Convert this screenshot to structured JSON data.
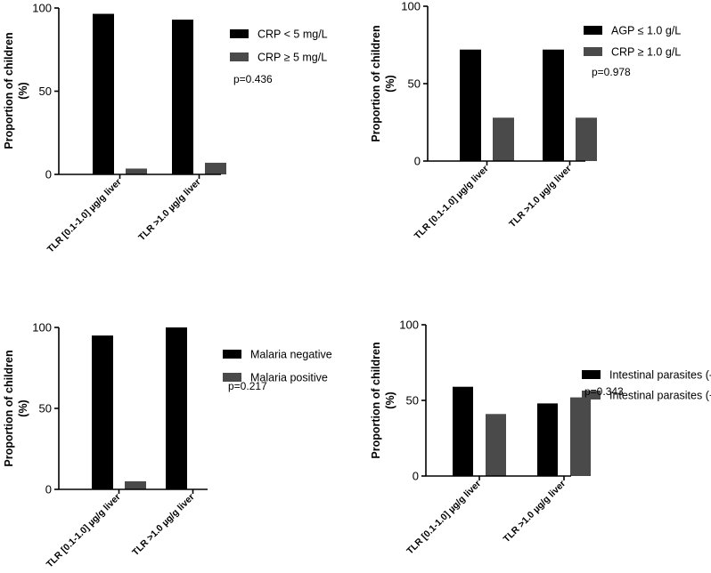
{
  "colors": {
    "series1": "#000000",
    "series2": "#4a4a4a",
    "axis": "#000000"
  },
  "chart_data": [
    {
      "type": "bar",
      "title": "",
      "ylabel": "Proportion of children (%)",
      "ylabel_lines": [
        "Proportion of children",
        "(%)"
      ],
      "categories": [
        "TLR [0.1-1.0] µg/g liver",
        "TLR >1.0 µg/g liver"
      ],
      "series": [
        {
          "name": "CRP < 5 mg/L",
          "values": [
            96.5,
            93
          ]
        },
        {
          "name": "CRP ≥ 5 mg/L",
          "values": [
            3.5,
            7
          ]
        }
      ],
      "yticks": [
        0,
        50,
        100
      ],
      "ylim": [
        0,
        100
      ],
      "annotation": "p=0.436"
    },
    {
      "type": "bar",
      "title": "",
      "ylabel": "Proportion of children (%)",
      "ylabel_lines": [
        "Proportion of children",
        "(%)"
      ],
      "categories": [
        "TLR [0.1-1.0] µg/g liver",
        "TLR >1.0 µg/g liver"
      ],
      "series": [
        {
          "name": "AGP ≤ 1.0 g/L",
          "values": [
            72,
            72
          ]
        },
        {
          "name": "CRP ≥ 1.0 g/L",
          "values": [
            28,
            28
          ]
        }
      ],
      "yticks": [
        0,
        50,
        100
      ],
      "ylim": [
        0,
        100
      ],
      "annotation": "p=0.978"
    },
    {
      "type": "bar",
      "title": "",
      "ylabel": "Proportion of children (%)",
      "ylabel_lines": [
        "Proportion of children",
        "(%)"
      ],
      "categories": [
        "TLR [0.1-1.0] µg/g liver",
        "TLR >1.0 µg/g liver"
      ],
      "series": [
        {
          "name": "Malaria negative",
          "values": [
            95,
            100
          ]
        },
        {
          "name": "Malaria positive",
          "values": [
            5,
            0
          ]
        }
      ],
      "yticks": [
        0,
        50,
        100
      ],
      "ylim": [
        0,
        100
      ],
      "annotation": "p=0.217"
    },
    {
      "type": "bar",
      "title": "",
      "ylabel": "Proportion of children (%)",
      "ylabel_lines": [
        "Proportion of children",
        "(%)"
      ],
      "categories": [
        "TLR [0.1-1.0] µg/g liver",
        "TLR >1.0 µg/g liver"
      ],
      "series": [
        {
          "name": "Intestinal parasites (-)",
          "values": [
            59,
            48
          ]
        },
        {
          "name": "Intestinal parasites (+)",
          "values": [
            41,
            52
          ]
        }
      ],
      "yticks": [
        0,
        50,
        100
      ],
      "ylim": [
        0,
        100
      ],
      "annotation": "p=0.343"
    }
  ]
}
